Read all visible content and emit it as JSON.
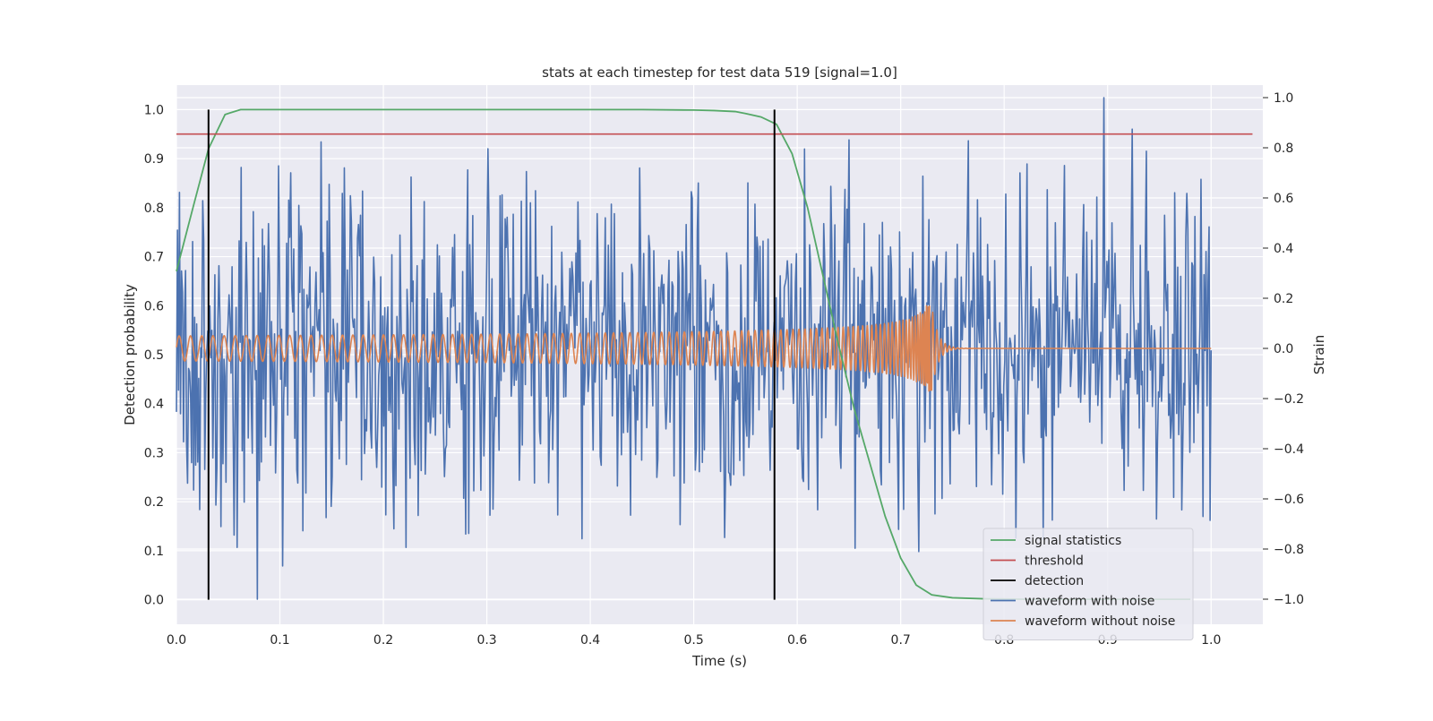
{
  "chart_data": {
    "type": "line",
    "title": "stats at each timestep for test data 519 [signal=1.0]",
    "xlabel": "Time (s)",
    "ylabel": "Detection probability",
    "y2label": "Strain",
    "xlim": [
      0.0,
      1.05
    ],
    "ylim": [
      -0.05,
      1.05
    ],
    "y2lim": [
      -1.1,
      1.05
    ],
    "grid": true,
    "legend_position": "bottom-right",
    "x_ticks": [
      "0.0",
      "0.1",
      "0.2",
      "0.3",
      "0.4",
      "0.5",
      "0.6",
      "0.7",
      "0.8",
      "0.9",
      "1.0"
    ],
    "y_ticks": [
      "0.0",
      "0.1",
      "0.2",
      "0.3",
      "0.4",
      "0.5",
      "0.6",
      "0.7",
      "0.8",
      "0.9",
      "1.0"
    ],
    "y2_ticks": [
      "−1.0",
      "−0.8",
      "−0.6",
      "−0.4",
      "−0.2",
      "0.0",
      "0.2",
      "0.4",
      "0.6",
      "0.8",
      "1.0"
    ],
    "colors": {
      "signal": "#55a868",
      "threshold": "#c44e52",
      "detection": "#000000",
      "noisy": "#4c72b0",
      "clean": "#dd8452",
      "plot_bg": "#eaeaf2",
      "grid": "#ffffff"
    },
    "series": [
      {
        "name": "signal statistics",
        "axis": "left",
        "x": [
          0.0,
          0.016,
          0.031,
          0.047,
          0.062,
          0.078,
          0.1,
          0.2,
          0.3,
          0.4,
          0.45,
          0.5,
          0.52,
          0.54,
          0.55,
          0.565,
          0.58,
          0.595,
          0.61,
          0.625,
          0.64,
          0.655,
          0.67,
          0.685,
          0.7,
          0.715,
          0.73,
          0.75,
          0.78,
          0.82,
          0.86,
          0.9,
          0.94,
          0.98
        ],
        "y": [
          0.67,
          0.8,
          0.92,
          0.99,
          1.0,
          1.0,
          1.0,
          1.0,
          1.0,
          1.0,
          1.0,
          0.999,
          0.998,
          0.996,
          0.992,
          0.985,
          0.97,
          0.91,
          0.8,
          0.66,
          0.52,
          0.39,
          0.28,
          0.17,
          0.085,
          0.03,
          0.01,
          0.004,
          0.002,
          0.001,
          0.001,
          0.001,
          0.001,
          0.001
        ]
      },
      {
        "name": "threshold",
        "axis": "left",
        "x": [
          0.0,
          1.04
        ],
        "y": [
          0.95,
          0.95
        ]
      },
      {
        "name": "detection",
        "axis": "left",
        "x": [
          0.031,
          0.578
        ],
        "y_range": [
          0.0,
          1.0
        ]
      },
      {
        "name": "waveform with noise",
        "axis": "right",
        "x_start": 0.0,
        "x_end": 1.0,
        "points": 1024,
        "amplitude": 1.0
      },
      {
        "name": "waveform without noise",
        "axis": "right",
        "x_start": 0.0,
        "x_end": 1.0,
        "merger_time": 0.73,
        "peak_amplitude": 0.17
      }
    ],
    "legend": [
      "signal statistics",
      "threshold",
      "detection",
      "waveform with noise",
      "waveform without noise"
    ]
  }
}
